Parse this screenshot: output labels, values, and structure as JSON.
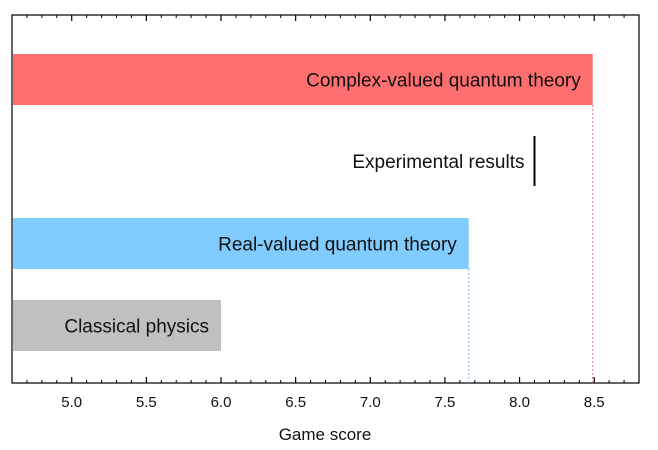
{
  "chart_data": {
    "type": "bar",
    "orientation": "horizontal",
    "xlabel": "Game score",
    "ylabel": "",
    "xlim": [
      4.6,
      8.8
    ],
    "x_ticks": [
      "5.0",
      "5.5",
      "6.0",
      "6.5",
      "7.0",
      "7.5",
      "8.0",
      "8.5"
    ],
    "grid": false,
    "legend": "none",
    "categories": [
      "Complex-valued quantum theory",
      "Experimental results",
      "Real-valued quantum theory",
      "Classical physics"
    ],
    "values": [
      8.49,
      8.1,
      7.66,
      6.0
    ],
    "bars": [
      {
        "label": "Complex-valued quantum theory",
        "value": 8.49,
        "color": "#ff6f6f",
        "dash_color": "#e87777"
      },
      {
        "label": "Real-valued quantum theory",
        "value": 7.66,
        "color": "#80ccff",
        "dash_color": "#77bbe8"
      },
      {
        "label": "Classical physics",
        "value": 6.0,
        "color": "#c0c0c0",
        "dash_color": null
      }
    ],
    "marker": {
      "label": "Experimental results",
      "value": 8.1,
      "color": "#000000"
    }
  }
}
